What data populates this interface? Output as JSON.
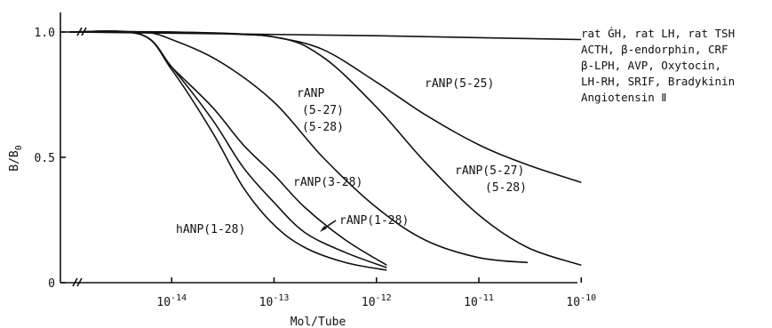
{
  "chart_data": {
    "type": "line",
    "xlabel": "Mol/Tube",
    "ylabel_main": "B/B",
    "ylabel_sub": "0",
    "x_scale": "log",
    "xlim": [
      1e-15,
      1e-10
    ],
    "ylim": [
      0,
      1.1
    ],
    "x_ticks": [
      {
        "value": 1e-14,
        "base": "10",
        "exp": "-14"
      },
      {
        "value": 1e-13,
        "base": "10",
        "exp": "-13"
      },
      {
        "value": 1e-12,
        "base": "10",
        "exp": "-12"
      },
      {
        "value": 1e-11,
        "base": "10",
        "exp": "-11"
      },
      {
        "value": 1e-10,
        "base": "10",
        "exp": "-10"
      }
    ],
    "y_ticks": [
      {
        "value": 0,
        "label": "0"
      },
      {
        "value": 0.5,
        "label": "0.5"
      },
      {
        "value": 1.0,
        "label": "1.0"
      }
    ],
    "grid": false,
    "series": [
      {
        "name": "hANP(1-28)",
        "points": [
          [
            1e-15,
            1.0
          ],
          [
            5e-15,
            0.99
          ],
          [
            1e-14,
            0.85
          ],
          [
            2.5e-14,
            0.6
          ],
          [
            5e-14,
            0.38
          ],
          [
            1e-13,
            0.23
          ],
          [
            2e-13,
            0.14
          ],
          [
            5e-13,
            0.08
          ],
          [
            1.26e-12,
            0.05
          ]
        ]
      },
      {
        "name": "rANP(1-28)",
        "points": [
          [
            1e-15,
            1.0
          ],
          [
            5e-15,
            0.99
          ],
          [
            1e-14,
            0.86
          ],
          [
            2.5e-14,
            0.65
          ],
          [
            5e-14,
            0.46
          ],
          [
            1e-13,
            0.32
          ],
          [
            2e-13,
            0.2
          ],
          [
            5e-13,
            0.12
          ],
          [
            1.26e-12,
            0.06
          ]
        ]
      },
      {
        "name": "rANP(3-28)",
        "points": [
          [
            1e-15,
            1.0
          ],
          [
            5e-15,
            0.99
          ],
          [
            1e-14,
            0.86
          ],
          [
            2.5e-14,
            0.7
          ],
          [
            5e-14,
            0.55
          ],
          [
            1e-13,
            0.43
          ],
          [
            2e-13,
            0.3
          ],
          [
            5e-13,
            0.17
          ],
          [
            1.26e-12,
            0.07
          ]
        ]
      },
      {
        "name": "rANP (5-27) (5-28)",
        "points": [
          [
            1e-15,
            1.0
          ],
          [
            5e-15,
            1.0
          ],
          [
            1e-14,
            0.97
          ],
          [
            3e-14,
            0.88
          ],
          [
            1e-13,
            0.72
          ],
          [
            3e-13,
            0.5
          ],
          [
            1e-12,
            0.3
          ],
          [
            3e-12,
            0.17
          ],
          [
            1e-11,
            0.1
          ],
          [
            3e-11,
            0.08
          ]
        ]
      },
      {
        "name": "rANP(5-27) (5-28)",
        "points": [
          [
            1e-15,
            1.0
          ],
          [
            1e-14,
            1.0
          ],
          [
            1e-13,
            0.98
          ],
          [
            3e-13,
            0.9
          ],
          [
            1e-12,
            0.7
          ],
          [
            3e-12,
            0.48
          ],
          [
            1e-11,
            0.27
          ],
          [
            3e-11,
            0.14
          ],
          [
            1e-10,
            0.07
          ]
        ]
      },
      {
        "name": "rANP(5-25)",
        "points": [
          [
            1e-15,
            1.0
          ],
          [
            1e-14,
            1.0
          ],
          [
            5e-14,
            0.99
          ],
          [
            1e-13,
            0.98
          ],
          [
            3e-13,
            0.93
          ],
          [
            1e-12,
            0.8
          ],
          [
            3e-12,
            0.67
          ],
          [
            1e-11,
            0.55
          ],
          [
            3e-11,
            0.47
          ],
          [
            1e-10,
            0.4
          ]
        ]
      },
      {
        "name": "rat GH, rat LH, rat TSH, ACTH, β-endorphin, CRF, β-LPH, AVP, Oxytocin, LH-RH, SRIF, Bradykinin, Angiotensin II",
        "points": [
          [
            1e-15,
            1.0
          ],
          [
            1e-12,
            0.985
          ],
          [
            1e-10,
            0.97
          ]
        ]
      }
    ],
    "annotations": {
      "hanp": "hANP(1-28)",
      "ranp_1_28": "rANP(1-28)",
      "ranp_3_28": "rANP(3-28)",
      "ranp_stack": [
        "rANP",
        "(5-27)",
        "(5-28)"
      ],
      "ranp_right": [
        "rANP(5-27)",
        "(5-28)"
      ],
      "ranp_5_25": "rANP(5-25)"
    },
    "legend_text": [
      "rat ĠH, rat LH, rat TSH",
      "ACTH, β-endorphin, CRF",
      "β-LPH, AVP, Oxytocin,",
      "LH-RH, SRIF, Bradykinin",
      "Angiotensin Ⅱ"
    ]
  }
}
